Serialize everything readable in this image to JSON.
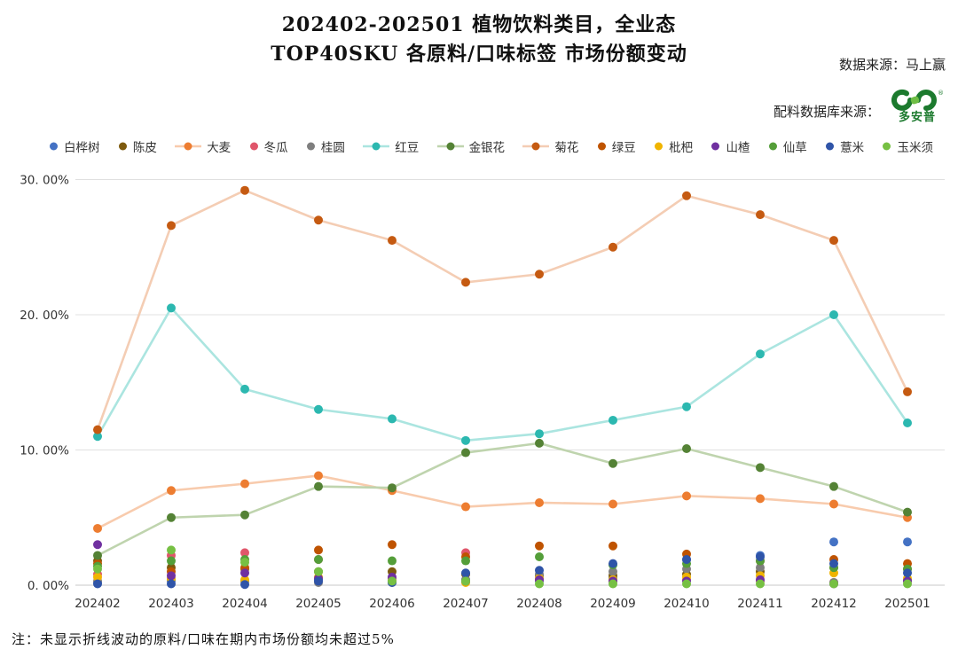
{
  "title": {
    "line1": "202402-202501 植物饮料类目，全业态",
    "line2": "TOP40SKU 各原料/口味标签 市场份额变动"
  },
  "sources": {
    "data_source": "数据来源：马上赢",
    "ingredient_source_label": "配料数据库来源：",
    "logo_text": "多安普",
    "logo_color": "#1c7a2e",
    "logo_accent": "#6fbe45",
    "registered_mark": "®"
  },
  "footnote": "注：未显示折线波动的原料/口味在期内市场份额均未超过5%",
  "chart_data": {
    "type": "line",
    "x": [
      "202402",
      "202403",
      "202404",
      "202405",
      "202406",
      "202407",
      "202408",
      "202409",
      "202410",
      "202411",
      "202412",
      "202501"
    ],
    "ylim": [
      0,
      30
    ],
    "yticks": [
      {
        "value": 0,
        "label": "0. 00%"
      },
      {
        "value": 10,
        "label": "10. 00%"
      },
      {
        "value": 20,
        "label": "20. 00%"
      },
      {
        "value": 30,
        "label": "30. 00%"
      }
    ],
    "grid": true,
    "legend_position": "top",
    "series": [
      {
        "name": "白桦树",
        "has_line": false,
        "dot_color": "#4472C4",
        "line_color": null,
        "values": [
          0.2,
          0.3,
          0.3,
          0.4,
          0.3,
          0.4,
          0.3,
          0.5,
          1.9,
          2.2,
          3.2,
          3.2
        ]
      },
      {
        "name": "陈皮",
        "has_line": false,
        "dot_color": "#7D5A0E",
        "line_color": null,
        "values": [
          1.8,
          1.3,
          1.2,
          1.0,
          1.0,
          0.8,
          0.7,
          0.7,
          0.8,
          1.0,
          1.3,
          1.2
        ]
      },
      {
        "name": "大麦",
        "has_line": true,
        "dot_color": "#ED7D31",
        "line_color": "#F8CBAD",
        "values": [
          4.2,
          7.0,
          7.5,
          8.1,
          7.0,
          5.8,
          6.1,
          6.0,
          6.6,
          6.4,
          6.0,
          5.0
        ]
      },
      {
        "name": "冬瓜",
        "has_line": false,
        "dot_color": "#E0566B",
        "line_color": null,
        "values": [
          0.8,
          2.2,
          2.4,
          1.9,
          0.5,
          2.4,
          0.4,
          0.3,
          0.4,
          0.3,
          0.2,
          0.3
        ]
      },
      {
        "name": "桂圆",
        "has_line": false,
        "dot_color": "#7F7F7F",
        "line_color": null,
        "values": [
          0.3,
          0.4,
          0.3,
          0.2,
          0.2,
          0.4,
          0.8,
          1.0,
          1.2,
          1.3,
          0.2,
          0.4
        ]
      },
      {
        "name": "红豆",
        "has_line": true,
        "dot_color": "#2CB8B0",
        "line_color": "#ABE5E0",
        "values": [
          11.0,
          20.5,
          14.5,
          13.0,
          12.3,
          10.7,
          11.2,
          12.2,
          13.2,
          17.1,
          20.0,
          12.0
        ]
      },
      {
        "name": "金银花",
        "has_line": true,
        "dot_color": "#548235",
        "line_color": "#BFD4AE",
        "values": [
          2.2,
          5.0,
          5.2,
          7.3,
          7.2,
          9.8,
          10.5,
          9.0,
          10.1,
          8.7,
          7.3,
          5.4
        ]
      },
      {
        "name": "菊花",
        "has_line": true,
        "dot_color": "#C55A11",
        "line_color": "#F4CDB4",
        "values": [
          11.5,
          26.6,
          29.2,
          27.0,
          25.5,
          22.4,
          23.0,
          25.0,
          28.8,
          27.4,
          25.5,
          14.3
        ]
      },
      {
        "name": "绿豆",
        "has_line": false,
        "dot_color": "#BF5300",
        "line_color": null,
        "values": [
          1.6,
          1.0,
          1.3,
          2.6,
          3.0,
          2.1,
          2.9,
          2.9,
          2.3,
          1.8,
          1.9,
          1.6
        ]
      },
      {
        "name": "枇杷",
        "has_line": false,
        "dot_color": "#F0B400",
        "line_color": null,
        "values": [
          0.6,
          0.5,
          0.4,
          0.6,
          0.3,
          0.2,
          0.5,
          0.4,
          0.6,
          0.7,
          0.9,
          0.5
        ]
      },
      {
        "name": "山楂",
        "has_line": false,
        "dot_color": "#7030A0",
        "line_color": null,
        "values": [
          3.0,
          0.7,
          0.9,
          0.5,
          0.6,
          0.3,
          0.4,
          0.3,
          0.3,
          0.4,
          0.1,
          0.3
        ]
      },
      {
        "name": "仙草",
        "has_line": false,
        "dot_color": "#549E39",
        "line_color": null,
        "values": [
          1.4,
          1.8,
          1.9,
          1.9,
          1.8,
          1.8,
          2.1,
          1.5,
          1.6,
          1.8,
          1.3,
          1.2
        ]
      },
      {
        "name": "薏米",
        "has_line": false,
        "dot_color": "#2F54A8",
        "line_color": null,
        "values": [
          0.1,
          0.1,
          0.05,
          0.3,
          0.2,
          0.9,
          1.1,
          1.6,
          1.9,
          2.1,
          1.6,
          0.9
        ]
      },
      {
        "name": "玉米须",
        "has_line": false,
        "dot_color": "#76C043",
        "line_color": null,
        "values": [
          1.2,
          2.6,
          1.7,
          1.0,
          0.3,
          0.3,
          0.1,
          0.1,
          0.1,
          0.1,
          0.1,
          0.1
        ]
      }
    ]
  }
}
